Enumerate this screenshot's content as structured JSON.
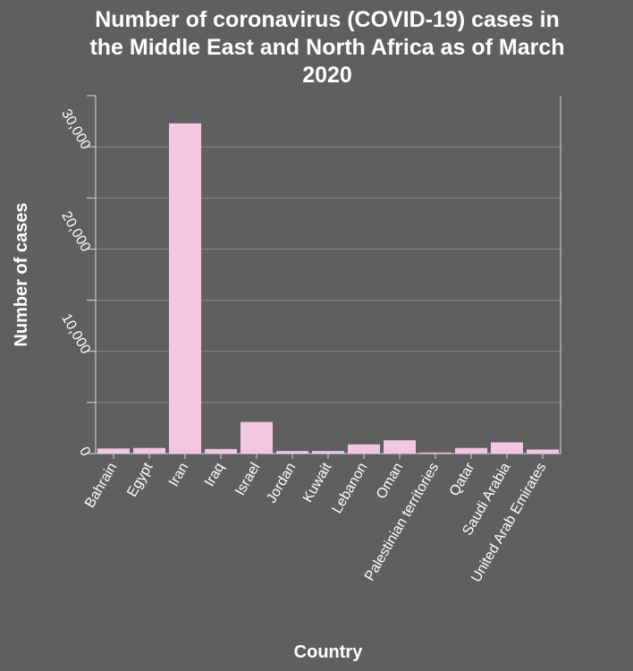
{
  "chart_data": {
    "type": "bar",
    "title_lines": [
      "Number of coronavirus (COVID-19) cases in",
      "the Middle East and North Africa as of March",
      "2020"
    ],
    "xlabel": "Country",
    "ylabel": "Number of cases",
    "categories": [
      "Bahrain",
      "Egypt",
      "Iran",
      "Iraq",
      "Israel",
      "Jordan",
      "Kuwait",
      "Lebanon",
      "Oman",
      "Palestinian territories",
      "Qatar",
      "Saudi Arabia",
      "United Arab Emirates"
    ],
    "values": [
      500,
      550,
      32300,
      450,
      3100,
      250,
      250,
      900,
      1300,
      100,
      550,
      1100,
      400
    ],
    "ylim": [
      0,
      35000
    ],
    "y_ticks": [
      0,
      5000,
      10000,
      15000,
      20000,
      25000,
      30000
    ],
    "y_tick_labels": [
      "0",
      "",
      "10,000",
      "",
      "20,000",
      "",
      "30,000"
    ],
    "grid": true,
    "colors": {
      "background": "#5f5f5f",
      "bar": "#f5c6e2",
      "gridline": "#8a8a8a",
      "axis": "#d8d8d8",
      "text": "#ffffff"
    }
  }
}
